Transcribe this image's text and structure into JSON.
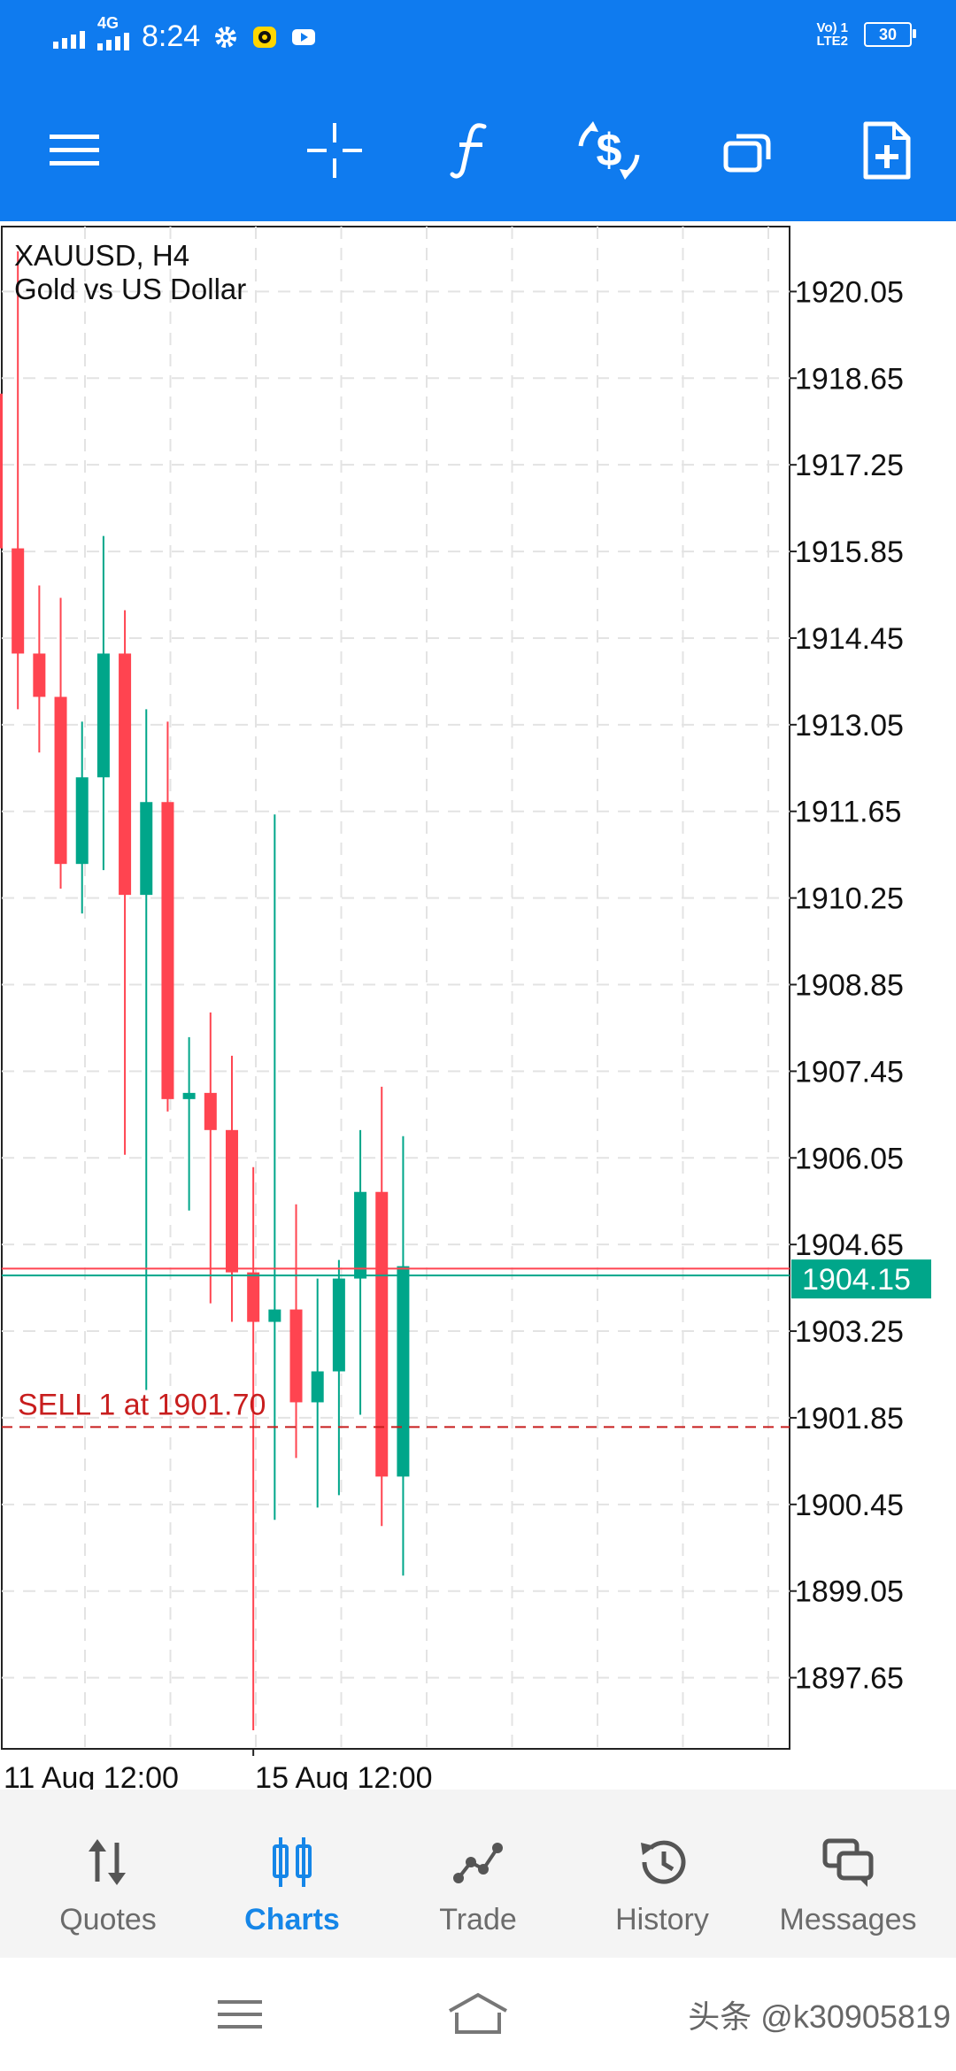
{
  "status_bar": {
    "network": "4G",
    "time": "8:24",
    "volte": "Vo) 1",
    "lte": "LTE2",
    "battery": "30"
  },
  "toolbar": {
    "buttons": [
      {
        "name": "menu",
        "icon": "hamburger-menu-icon"
      },
      {
        "name": "crosshair",
        "icon": "crosshair-icon"
      },
      {
        "name": "indicators",
        "icon": "function-f-icon"
      },
      {
        "name": "new-order",
        "icon": "dollar-exchange-icon"
      },
      {
        "name": "windows",
        "icon": "windows-icon"
      },
      {
        "name": "templates",
        "icon": "add-document-icon"
      }
    ]
  },
  "chart": {
    "symbol_line": "XAUUSD, H4",
    "description": "Gold vs US Dollar",
    "current_price": "1904.15",
    "order_label": "SELL 1 at 1901.70",
    "x_labels": [
      "11 Aug 12:00",
      "15 Aug 12:00"
    ],
    "colors": {
      "bull": "#00a68a",
      "bear": "#ff4450",
      "order": "#c81e1e",
      "bid_line": "#00a68a",
      "ask_line": "#ff4450"
    }
  },
  "chart_data": {
    "type": "candlestick",
    "symbol": "XAUUSD",
    "timeframe": "H4",
    "y_tick_labels": [
      "1920.05",
      "1918.65",
      "1917.25",
      "1915.85",
      "1914.45",
      "1913.05",
      "1911.65",
      "1910.25",
      "1908.85",
      "1907.45",
      "1906.05",
      "1904.65",
      "1903.25",
      "1901.85",
      "1900.45",
      "1899.05",
      "1897.65"
    ],
    "y_ticks": [
      1920.05,
      1918.65,
      1917.25,
      1915.85,
      1914.45,
      1913.05,
      1911.65,
      1910.25,
      1908.85,
      1907.45,
      1906.05,
      1904.65,
      1903.25,
      1901.85,
      1900.45,
      1899.05,
      1897.65
    ],
    "ylim": [
      1896.5,
      1921.1
    ],
    "current_bid": 1904.15,
    "ask": 1904.26,
    "order": {
      "side": "SELL",
      "volume": 1,
      "price": 1901.7
    },
    "x_labels": [
      {
        "text": "11 Aug 12:00",
        "candle": 0
      },
      {
        "text": "15 Aug 12:00",
        "candle": 12
      }
    ],
    "candles": [
      {
        "o": 1918.4,
        "h": 1919.8,
        "l": 1915.9,
        "c": 1915.9
      },
      {
        "o": 1915.9,
        "h": 1920.7,
        "l": 1913.3,
        "c": 1914.2
      },
      {
        "o": 1914.2,
        "h": 1915.3,
        "l": 1912.6,
        "c": 1913.5
      },
      {
        "o": 1913.5,
        "h": 1915.1,
        "l": 1910.4,
        "c": 1910.8
      },
      {
        "o": 1910.8,
        "h": 1913.1,
        "l": 1910.0,
        "c": 1912.2
      },
      {
        "o": 1912.2,
        "h": 1916.1,
        "l": 1910.7,
        "c": 1914.2
      },
      {
        "o": 1914.2,
        "h": 1914.9,
        "l": 1906.1,
        "c": 1910.3
      },
      {
        "o": 1910.3,
        "h": 1913.3,
        "l": 1902.3,
        "c": 1911.8
      },
      {
        "o": 1911.8,
        "h": 1913.1,
        "l": 1906.8,
        "c": 1907.0
      },
      {
        "o": 1907.0,
        "h": 1908.0,
        "l": 1905.2,
        "c": 1907.1
      },
      {
        "o": 1907.1,
        "h": 1908.4,
        "l": 1903.7,
        "c": 1906.5
      },
      {
        "o": 1906.5,
        "h": 1907.7,
        "l": 1903.4,
        "c": 1904.2
      },
      {
        "o": 1904.2,
        "h": 1905.9,
        "l": 1896.8,
        "c": 1903.4
      },
      {
        "o": 1903.4,
        "h": 1911.6,
        "l": 1900.2,
        "c": 1903.6
      },
      {
        "o": 1903.6,
        "h": 1905.3,
        "l": 1901.2,
        "c": 1902.1
      },
      {
        "o": 1902.1,
        "h": 1904.1,
        "l": 1900.4,
        "c": 1902.6
      },
      {
        "o": 1902.6,
        "h": 1904.4,
        "l": 1900.6,
        "c": 1904.1
      },
      {
        "o": 1904.1,
        "h": 1906.5,
        "l": 1901.9,
        "c": 1905.5
      },
      {
        "o": 1905.5,
        "h": 1907.2,
        "l": 1900.1,
        "c": 1900.9
      },
      {
        "o": 1900.9,
        "h": 1906.4,
        "l": 1899.3,
        "c": 1904.3
      }
    ]
  },
  "bottom_nav": {
    "items": [
      {
        "label": "Quotes",
        "icon": "quotes-arrows-icon",
        "active": false
      },
      {
        "label": "Charts",
        "icon": "charts-candles-icon",
        "active": true
      },
      {
        "label": "Trade",
        "icon": "trade-line-icon",
        "active": false
      },
      {
        "label": "History",
        "icon": "history-clock-icon",
        "active": false
      },
      {
        "label": "Messages",
        "icon": "messages-chat-icon",
        "active": false
      }
    ]
  },
  "system_nav": {
    "watermark": "头条 @k30905819"
  }
}
